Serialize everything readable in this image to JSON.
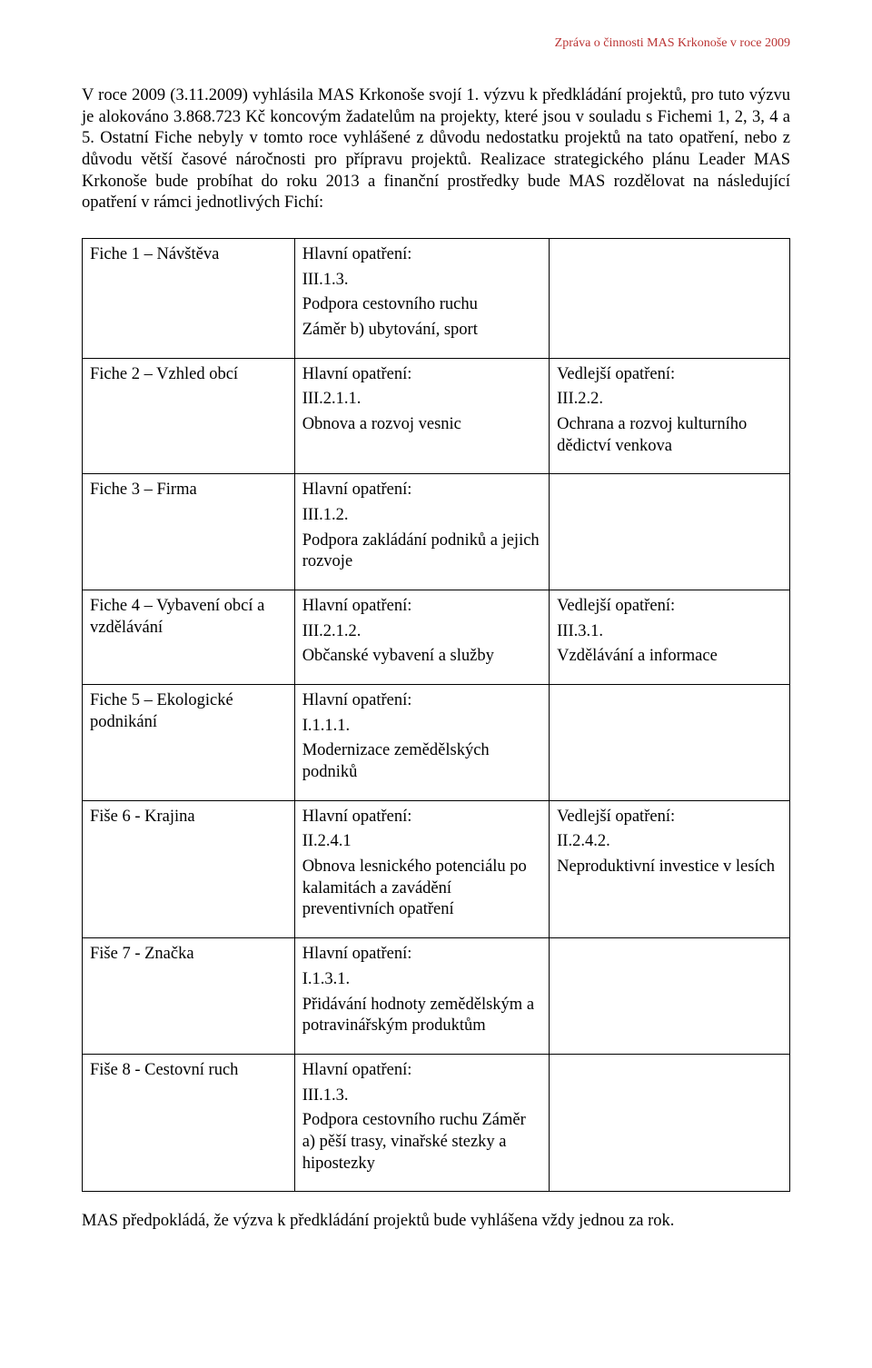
{
  "header": {
    "right_text": "Zpráva o činnosti MAS Krkonoše v roce 2009"
  },
  "paragraph": "V roce 2009 (3.11.2009) vyhlásila MAS Krkonoše svojí 1. výzvu k předkládání projektů, pro tuto výzvu je alokováno 3.868.723 Kč koncovým žadatelům na projekty, které jsou v souladu s Fichemi 1, 2, 3, 4 a 5. Ostatní Fiche nebyly v tomto roce vyhlášené z důvodu nedostatku projektů na tato opatření, nebo z důvodu větší časové náročnosti pro přípravu projektů. Realizace strategického plánu Leader MAS Krkonoše bude probíhat do roku 2013 a finanční prostředky bude MAS rozdělovat na následující opatření v rámci jednotlivých Fichí:",
  "rows": [
    {
      "name": "Fiche 1 – Návštěva",
      "main": [
        "Hlavní opatření:",
        "III.1.3.",
        "Podpora cestovního ruchu",
        "Záměr b) ubytování, sport"
      ],
      "side": []
    },
    {
      "name": "Fiche 2 – Vzhled obcí",
      "main": [
        "Hlavní opatření:",
        "III.2.1.1.",
        "Obnova a rozvoj vesnic"
      ],
      "side": [
        "Vedlejší opatření:",
        "III.2.2.",
        "Ochrana a rozvoj kulturního dědictví venkova"
      ]
    },
    {
      "name": "Fiche 3 – Firma",
      "main": [
        "Hlavní opatření:",
        "III.1.2.",
        "Podpora zakládání podniků a jejich rozvoje"
      ],
      "side": []
    },
    {
      "name": "Fiche 4 – Vybavení obcí a vzdělávání",
      "main": [
        "Hlavní opatření:",
        "III.2.1.2.",
        "Občanské vybavení a služby"
      ],
      "side": [
        "Vedlejší opatření:",
        "III.3.1.",
        "Vzdělávání a informace"
      ]
    },
    {
      "name": "Fiche 5 – Ekologické podnikání",
      "main": [
        "Hlavní opatření:",
        "I.1.1.1.",
        "Modernizace zemědělských podniků"
      ],
      "side": []
    },
    {
      "name": "Fiše 6 - Krajina",
      "main": [
        "Hlavní opatření:",
        "II.2.4.1",
        "Obnova lesnického potenciálu po kalamitách a zavádění preventivních opatření"
      ],
      "side": [
        "Vedlejší opatření:",
        "II.2.4.2.",
        "Neproduktivní investice v lesích"
      ]
    },
    {
      "name": "Fiše 7 - Značka",
      "main": [
        "Hlavní opatření:",
        "I.1.3.1.",
        "Přidávání hodnoty zemědělským a potravinářským produktům"
      ],
      "side": []
    },
    {
      "name": "Fiše 8 - Cestovní ruch",
      "main": [
        "Hlavní opatření:",
        "III.1.3.",
        "Podpora cestovního ruchu Záměr a) pěší trasy, vinařské stezky a hipostezky"
      ],
      "side": []
    }
  ],
  "footer": "MAS předpokládá, že výzva k předkládání projektů bude vyhlášena vždy jednou za rok."
}
